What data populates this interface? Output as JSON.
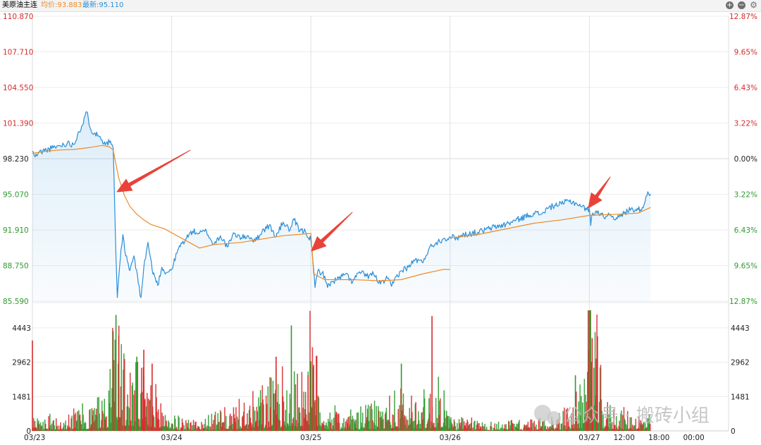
{
  "header": {
    "title": "美原油主连",
    "avg_label": "均价:93.883",
    "last_label": "最新:95.110",
    "colors": {
      "title": "#222222",
      "avg": "#f08a24",
      "last": "#2a8fd8"
    }
  },
  "controls": {
    "zoom_in_icon": "+",
    "zoom_out_icon": "−",
    "settings_icon": "⚙"
  },
  "watermark": {
    "text": "公众号 · 搬砖小组"
  },
  "chart_data": [
    {
      "type": "line",
      "title": "",
      "y_ticks": [
        "110.870",
        "107.710",
        "104.550",
        "101.390",
        "98.230",
        "95.070",
        "91.910",
        "88.750",
        "85.590"
      ],
      "y_tick_colors": [
        "#d62b2b",
        "#d62b2b",
        "#d62b2b",
        "#d62b2b",
        "#222222",
        "#2e9a2e",
        "#2e9a2e",
        "#2e9a2e",
        "#2e9a2e"
      ],
      "pct_ticks": [
        "12.87%",
        "9.65%",
        "6.43%",
        "3.22%",
        "0.00%",
        "3.22%",
        "6.43%",
        "9.65%",
        "12.87%"
      ],
      "ylim": [
        85.59,
        110.87
      ],
      "reference_price": 98.23,
      "x_labels": [
        "03/23",
        "03/24",
        "03/25",
        "03/26",
        "03/27",
        "12:00",
        "18:00",
        "00:00"
      ],
      "x_range": [
        0,
        5
      ],
      "session_breaks": [
        1,
        2,
        3,
        4
      ],
      "series": [
        {
          "role": "price",
          "color": "#2a8fd8",
          "points": [
            [
              0.0,
              98.9
            ],
            [
              0.02,
              98.4
            ],
            [
              0.05,
              98.8
            ],
            [
              0.1,
              99.0
            ],
            [
              0.15,
              99.2
            ],
            [
              0.2,
              99.4
            ],
            [
              0.25,
              99.6
            ],
            [
              0.3,
              99.5
            ],
            [
              0.33,
              100.6
            ],
            [
              0.36,
              101.2
            ],
            [
              0.39,
              102.4
            ],
            [
              0.42,
              100.8
            ],
            [
              0.45,
              100.5
            ],
            [
              0.48,
              100.2
            ],
            [
              0.5,
              99.9
            ],
            [
              0.53,
              99.6
            ],
            [
              0.56,
              99.8
            ],
            [
              0.58,
              99.2
            ],
            [
              0.59,
              94.5
            ],
            [
              0.6,
              89.5
            ],
            [
              0.61,
              85.9
            ],
            [
              0.63,
              89.2
            ],
            [
              0.65,
              91.5
            ],
            [
              0.67,
              89.6
            ],
            [
              0.7,
              88.3
            ],
            [
              0.73,
              89.6
            ],
            [
              0.76,
              87.2
            ],
            [
              0.78,
              85.9
            ],
            [
              0.8,
              88.6
            ],
            [
              0.83,
              90.8
            ],
            [
              0.86,
              88.4
            ],
            [
              0.9,
              87.0
            ],
            [
              0.93,
              88.6
            ],
            [
              0.96,
              88.1
            ],
            [
              1.0,
              88.4
            ],
            [
              1.05,
              90.3
            ],
            [
              1.1,
              91.1
            ],
            [
              1.15,
              91.8
            ],
            [
              1.2,
              91.6
            ],
            [
              1.25,
              91.8
            ],
            [
              1.3,
              90.6
            ],
            [
              1.35,
              91.4
            ],
            [
              1.4,
              90.4
            ],
            [
              1.45,
              91.6
            ],
            [
              1.5,
              91.2
            ],
            [
              1.55,
              91.4
            ],
            [
              1.6,
              90.9
            ],
            [
              1.65,
              91.8
            ],
            [
              1.7,
              92.3
            ],
            [
              1.75,
              91.3
            ],
            [
              1.8,
              92.6
            ],
            [
              1.85,
              91.9
            ],
            [
              1.88,
              92.8
            ],
            [
              1.92,
              91.8
            ],
            [
              1.96,
              91.8
            ],
            [
              2.0,
              91.0
            ],
            [
              2.02,
              88.4
            ],
            [
              2.03,
              86.8
            ],
            [
              2.05,
              88.3
            ],
            [
              2.08,
              88.1
            ],
            [
              2.1,
              87.8
            ],
            [
              2.12,
              86.8
            ],
            [
              2.15,
              87.3
            ],
            [
              2.2,
              87.6
            ],
            [
              2.25,
              88.0
            ],
            [
              2.3,
              87.3
            ],
            [
              2.35,
              88.2
            ],
            [
              2.4,
              87.8
            ],
            [
              2.45,
              88.0
            ],
            [
              2.5,
              87.1
            ],
            [
              2.55,
              87.6
            ],
            [
              2.58,
              86.9
            ],
            [
              2.6,
              87.5
            ],
            [
              2.65,
              88.3
            ],
            [
              2.7,
              88.6
            ],
            [
              2.75,
              89.3
            ],
            [
              2.8,
              89.0
            ],
            [
              2.85,
              90.3
            ],
            [
              2.9,
              90.8
            ],
            [
              2.95,
              91.1
            ],
            [
              3.0,
              91.3
            ],
            [
              3.05,
              91.2
            ],
            [
              3.1,
              91.5
            ],
            [
              3.2,
              91.7
            ],
            [
              3.3,
              92.1
            ],
            [
              3.4,
              92.4
            ],
            [
              3.5,
              92.9
            ],
            [
              3.6,
              93.4
            ],
            [
              3.65,
              93.3
            ],
            [
              3.7,
              93.8
            ],
            [
              3.75,
              94.1
            ],
            [
              3.8,
              94.2
            ],
            [
              3.85,
              94.5
            ],
            [
              3.9,
              94.3
            ],
            [
              3.95,
              94.0
            ],
            [
              3.98,
              93.7
            ],
            [
              4.0,
              93.8
            ],
            [
              4.01,
              92.3
            ],
            [
              4.02,
              93.3
            ],
            [
              4.05,
              93.6
            ],
            [
              4.1,
              93.1
            ],
            [
              4.15,
              93.3
            ],
            [
              4.2,
              92.9
            ],
            [
              4.25,
              93.4
            ],
            [
              4.3,
              93.8
            ],
            [
              4.35,
              93.7
            ],
            [
              4.38,
              93.9
            ],
            [
              4.4,
              94.4
            ],
            [
              4.42,
              95.3
            ],
            [
              4.44,
              95.1
            ]
          ]
        },
        {
          "role": "average",
          "color": "#f08a24",
          "points": [
            [
              0.0,
              98.7
            ],
            [
              0.1,
              98.9
            ],
            [
              0.2,
              99.0
            ],
            [
              0.3,
              99.05
            ],
            [
              0.4,
              99.2
            ],
            [
              0.5,
              99.4
            ],
            [
              0.55,
              99.3
            ],
            [
              0.58,
              99.0
            ],
            [
              0.62,
              96.5
            ],
            [
              0.66,
              95.0
            ],
            [
              0.7,
              94.0
            ],
            [
              0.75,
              93.3
            ],
            [
              0.8,
              92.8
            ],
            [
              0.85,
              92.4
            ],
            [
              0.9,
              92.2
            ],
            [
              0.95,
              92.0
            ],
            [
              1.2,
              90.3
            ],
            [
              1.3,
              90.6
            ],
            [
              1.4,
              90.7
            ],
            [
              1.5,
              90.8
            ],
            [
              1.6,
              91.0
            ],
            [
              1.7,
              91.2
            ],
            [
              1.8,
              91.4
            ],
            [
              1.9,
              91.5
            ],
            [
              2.0,
              91.6
            ],
            [
              2.02,
              88.0
            ],
            [
              2.1,
              87.5
            ],
            [
              2.3,
              87.5
            ],
            [
              2.5,
              87.4
            ],
            [
              2.65,
              87.5
            ],
            [
              2.8,
              88.0
            ],
            [
              2.95,
              88.4
            ],
            [
              3.0,
              88.4
            ],
            [
              3.0,
              91.2
            ],
            [
              3.2,
              91.5
            ],
            [
              3.4,
              92.0
            ],
            [
              3.6,
              92.5
            ],
            [
              3.8,
              92.8
            ],
            [
              4.0,
              93.2
            ],
            [
              4.2,
              93.3
            ],
            [
              4.35,
              93.4
            ],
            [
              4.44,
              93.9
            ]
          ]
        }
      ]
    },
    {
      "type": "bar",
      "title": "",
      "y_ticks": [
        4443,
        2962,
        1481,
        0
      ],
      "ylim": [
        0,
        5200
      ],
      "colors": {
        "up": "#d62b2b",
        "down": "#2e9a2e"
      },
      "volume_profile": [
        [
          0.0,
          300
        ],
        [
          0.2,
          500
        ],
        [
          0.4,
          700
        ],
        [
          0.55,
          1200
        ],
        [
          0.6,
          5000
        ],
        [
          0.65,
          2000
        ],
        [
          0.8,
          1600
        ],
        [
          0.9,
          1100
        ],
        [
          1.0,
          400
        ],
        [
          1.2,
          300
        ],
        [
          1.4,
          600
        ],
        [
          1.6,
          1000
        ],
        [
          1.75,
          1600
        ],
        [
          1.9,
          1500
        ],
        [
          2.0,
          3000
        ],
        [
          2.1,
          700
        ],
        [
          2.3,
          500
        ],
        [
          2.5,
          800
        ],
        [
          2.65,
          1100
        ],
        [
          2.8,
          1000
        ],
        [
          2.95,
          1400
        ],
        [
          3.0,
          400
        ],
        [
          3.3,
          250
        ],
        [
          3.6,
          300
        ],
        [
          3.8,
          500
        ],
        [
          3.95,
          1200
        ],
        [
          4.0,
          5200
        ],
        [
          4.1,
          800
        ],
        [
          4.3,
          500
        ],
        [
          4.44,
          400
        ]
      ],
      "spikes": [
        [
          0.0,
          3900,
          "up"
        ],
        [
          0.58,
          4300,
          "down"
        ],
        [
          0.6,
          5000,
          "down"
        ],
        [
          0.62,
          4100,
          "up"
        ],
        [
          0.75,
          3200,
          "down"
        ],
        [
          0.8,
          3500,
          "up"
        ],
        [
          0.86,
          2900,
          "up"
        ],
        [
          1.75,
          3200,
          "up"
        ],
        [
          1.86,
          4550,
          "down"
        ],
        [
          1.98,
          2400,
          "up"
        ],
        [
          2.0,
          3000,
          "down"
        ],
        [
          2.65,
          2900,
          "down"
        ],
        [
          2.87,
          4950,
          "up"
        ],
        [
          3.9,
          2400,
          "down"
        ],
        [
          4.0,
          5200,
          "down"
        ],
        [
          4.02,
          4000,
          "up"
        ]
      ]
    }
  ]
}
